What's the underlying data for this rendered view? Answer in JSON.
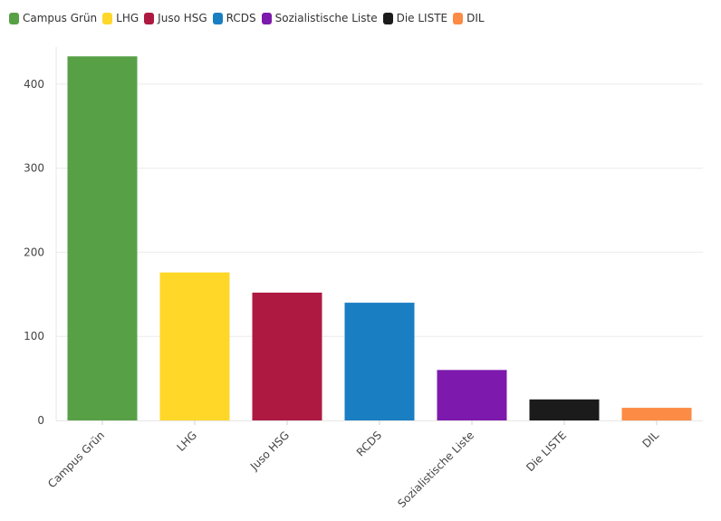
{
  "chart_data": {
    "type": "bar",
    "title": "",
    "xlabel": "",
    "ylabel": "",
    "categories": [
      "Campus Grün",
      "LHG",
      "Juso HSG",
      "RCDS",
      "Sozialistische Liste",
      "Die LISTE",
      "DIL"
    ],
    "values": [
      433,
      176,
      152,
      140,
      60,
      25,
      15
    ],
    "colors": [
      "#57a046",
      "#ffd729",
      "#ae1942",
      "#1a7ec3",
      "#7d1aad",
      "#1b1b1b",
      "#fb8b45"
    ],
    "ylim": [
      0,
      444
    ],
    "yticks": [
      0,
      100,
      200,
      300,
      400
    ],
    "grid": true,
    "legend_position": "top-left",
    "legend": [
      "Campus Grün",
      "LHG",
      "Juso HSG",
      "RCDS",
      "Sozialistische Liste",
      "Die LISTE",
      "DIL"
    ]
  }
}
